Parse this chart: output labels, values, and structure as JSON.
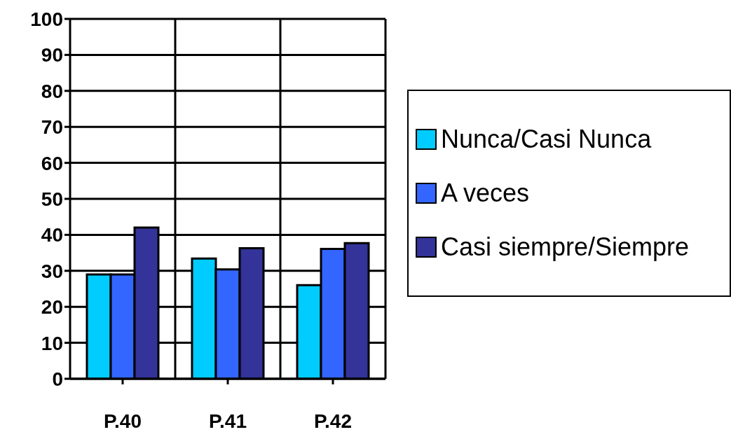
{
  "chart_data": {
    "type": "bar",
    "categories": [
      "P.40",
      "P.41",
      "P.42"
    ],
    "series": [
      {
        "name": "Nunca/Casi Nunca",
        "color": "#00ccff",
        "values": [
          29,
          33.4,
          26
        ]
      },
      {
        "name": "A veces",
        "color": "#3366ff",
        "values": [
          29,
          30.4,
          36.1
        ]
      },
      {
        "name": "Casi siempre/Siempre",
        "color": "#333399",
        "values": [
          42,
          36.3,
          37.7
        ]
      }
    ],
    "ylim": [
      0,
      100
    ],
    "yticks": [
      0,
      10,
      20,
      30,
      40,
      50,
      60,
      70,
      80,
      90,
      100
    ],
    "grid": true,
    "legend": "right"
  }
}
